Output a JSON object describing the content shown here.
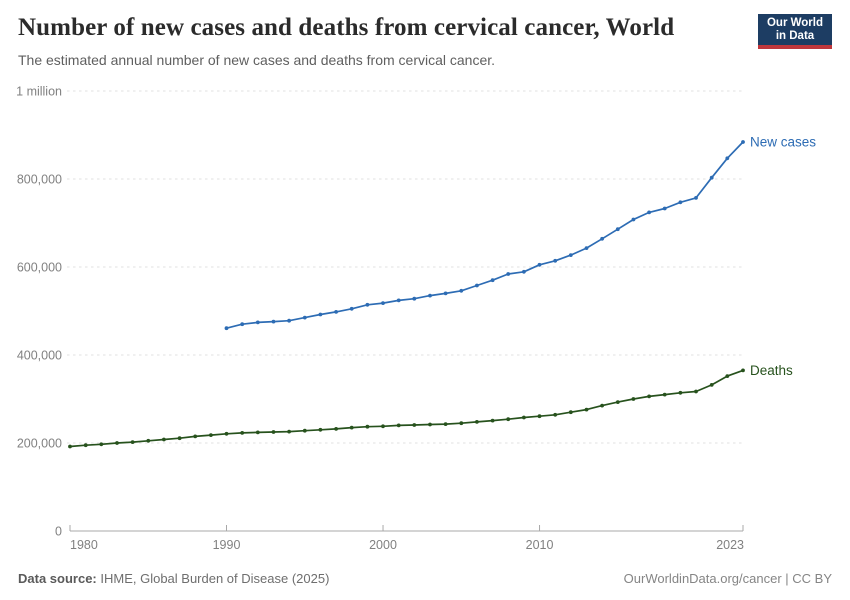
{
  "header": {
    "title": "Number of new cases and deaths from cervical cancer, World",
    "subtitle": "The estimated annual number of new cases and deaths from cervical cancer.",
    "logo": {
      "line1": "Our World",
      "line2": "in Data",
      "bg_color": "#1d3d63",
      "accent_color": "#c0373c"
    }
  },
  "chart_data": {
    "type": "line",
    "title": "Number of new cases and deaths from cervical cancer, World",
    "xlabel": "",
    "ylabel": "",
    "xlim": [
      1980,
      2023
    ],
    "ylim": [
      0,
      1000000
    ],
    "grid": "horizontal-dashed",
    "legend_position": "line-end-labels",
    "x_ticks": [
      1980,
      1990,
      2000,
      2010,
      2023
    ],
    "y_ticks": [
      {
        "value": 0,
        "label": "0"
      },
      {
        "value": 200000,
        "label": "200,000"
      },
      {
        "value": 400000,
        "label": "400,000"
      },
      {
        "value": 600000,
        "label": "600,000"
      },
      {
        "value": 800000,
        "label": "800,000"
      },
      {
        "value": 1000000,
        "label": "1 million"
      }
    ],
    "series": [
      {
        "name": "New cases",
        "color": "#2d6cb4",
        "start_year": 1990,
        "values": [
          461000,
          470000,
          474000,
          476000,
          478000,
          485000,
          492000,
          498000,
          505000,
          514000,
          518000,
          524000,
          528000,
          535000,
          540000,
          546000,
          558000,
          570000,
          584000,
          589000,
          605000,
          614000,
          627000,
          643000,
          664000,
          686000,
          708000,
          724000,
          733000,
          747000,
          757000,
          803000,
          847000,
          884000
        ]
      },
      {
        "name": "Deaths",
        "color": "#27521d",
        "start_year": 1980,
        "values": [
          192000,
          195000,
          197000,
          200000,
          202000,
          205000,
          208000,
          211000,
          215000,
          218000,
          221000,
          223000,
          224000,
          225000,
          226000,
          228000,
          230000,
          232000,
          235000,
          237000,
          238000,
          240000,
          241000,
          242000,
          243000,
          245000,
          248000,
          251000,
          254000,
          258000,
          261000,
          264000,
          270000,
          276000,
          285000,
          293000,
          300000,
          306000,
          310000,
          314000,
          317000,
          332000,
          352000,
          365000
        ]
      }
    ]
  },
  "footer": {
    "source_label": "Data source:",
    "source_value": " IHME, Global Burden of Disease (2025)",
    "link": "OurWorldinData.org/cancer | CC BY"
  }
}
